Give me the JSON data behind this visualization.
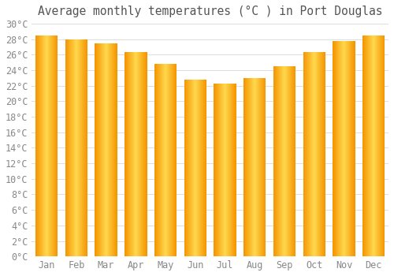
{
  "title": "Average monthly temperatures (°C ) in Port Douglas",
  "months": [
    "Jan",
    "Feb",
    "Mar",
    "Apr",
    "May",
    "Jun",
    "Jul",
    "Aug",
    "Sep",
    "Oct",
    "Nov",
    "Dec"
  ],
  "values": [
    28.5,
    28.0,
    27.5,
    26.3,
    24.8,
    22.8,
    22.3,
    23.0,
    24.5,
    26.3,
    27.8,
    28.5
  ],
  "bar_color_center": "#FFD84D",
  "bar_color_edge": "#F59400",
  "background_color": "#FFFFFF",
  "grid_color": "#DDDDDD",
  "text_color": "#888888",
  "title_color": "#555555",
  "ylim": [
    0,
    30
  ],
  "ytick_step": 2,
  "title_fontsize": 10.5,
  "tick_fontsize": 8.5,
  "bar_width": 0.75
}
